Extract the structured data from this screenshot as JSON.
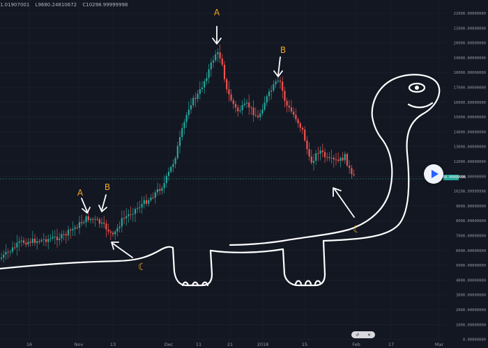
{
  "header": {
    "ohlc": [
      "1.01907001",
      "L9680.24810672",
      "C10298.99999998"
    ]
  },
  "price_axis": {
    "labels": [
      "22000.00000000",
      "21000.00000000",
      "20000.00000000",
      "19000.00000000",
      "18000.00000000",
      "17000.00000000",
      "16000.00000000",
      "15000.00000000",
      "14000.00000000",
      "13000.00000000",
      "12000.00000000",
      "11000.00000000",
      "10298.99999998",
      "9000.00000000",
      "8000.00000000",
      "7000.00000000",
      "6000.00000000",
      "5000.00000000",
      "4000.00000000",
      "3000.00000000",
      "2000.00000000",
      "1000.00000000",
      "0.00000000",
      "-1000.00000000"
    ],
    "current_price": "10298.99999998"
  },
  "time_axis": {
    "labels": [
      "16",
      "Nov",
      "13",
      "Dec",
      "11",
      "21",
      "2018",
      "15",
      "Feb",
      "17",
      "Mar"
    ]
  },
  "annotations": {
    "left_peak_a": "A",
    "left_peak_b": "B",
    "right_peak_a": "A",
    "right_peak_b": "B",
    "moon_1": "☾",
    "moon_2": "☾"
  },
  "controls": {
    "play_label": "▶",
    "badge_left": "↺",
    "badge_right": "✕"
  },
  "colors": {
    "background": "#131722",
    "up_candle": "#26a69a",
    "down_candle": "#ef5350",
    "drawing": "#ffffff",
    "annotation_letter": "#f5a623",
    "grid": "#1e2330"
  },
  "icons": {
    "play": "play-icon",
    "refresh": "refresh-icon",
    "close": "close-icon"
  }
}
